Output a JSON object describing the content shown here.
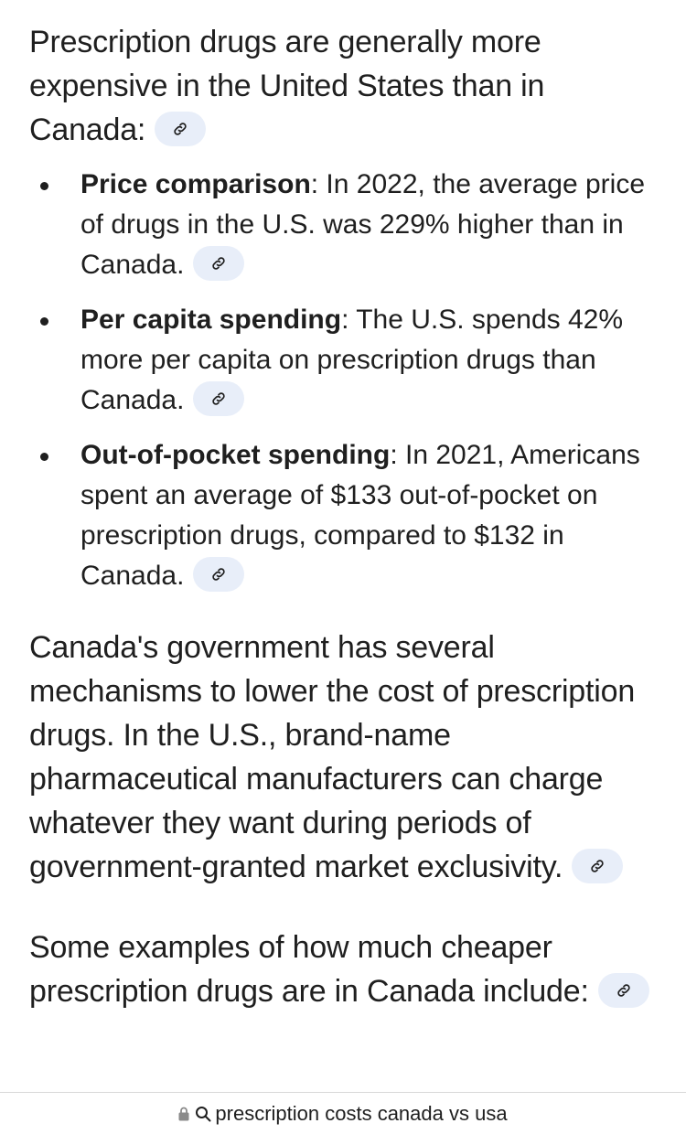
{
  "intro": {
    "text": "Prescription drugs are generally more expensive in the United States than in Canada:"
  },
  "bullets": [
    {
      "title": "Price comparison",
      "text": ": In 2022, the average price of drugs in the U.S. was 229% higher than in Canada."
    },
    {
      "title": "Per capita spending",
      "text": ": The U.S. spends 42% more per capita on prescription drugs than Canada."
    },
    {
      "title": "Out-of-pocket spending",
      "text": ": In 2021, Americans spent an average of $133 out-of-pocket on prescription drugs, compared to $132 in Canada."
    }
  ],
  "para2": {
    "text": "Canada's government has several mechanisms to lower the cost of prescription drugs. In the U.S., brand-name pharmaceutical manufacturers can charge whatever they want during periods of government-granted market exclusivity."
  },
  "para3": {
    "text": "Some examples of how much cheaper prescription drugs are in Canada include:"
  },
  "address_bar": {
    "query": "prescription costs canada vs usa"
  },
  "icons": {
    "link": "link-icon",
    "lock": "lock-icon",
    "search": "search-icon"
  },
  "colors": {
    "chip_bg": "#e8eef9",
    "text": "#1f1f1f"
  }
}
